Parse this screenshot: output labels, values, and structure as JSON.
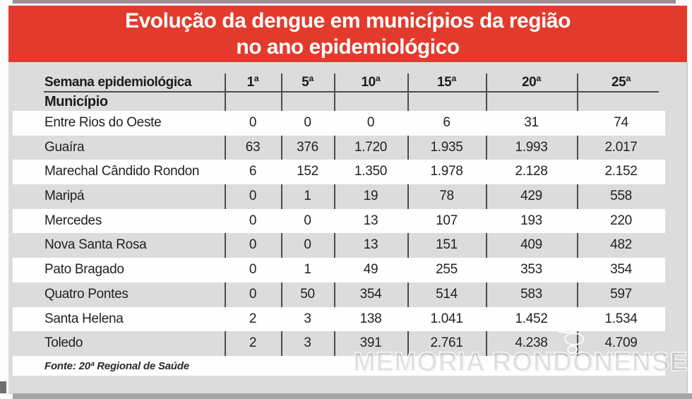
{
  "title": {
    "line1": "Evolução da dengue em municípios da região",
    "line2": "no ano epidemiológico"
  },
  "table": {
    "header_label": "Semana epidemiológica",
    "week_columns": [
      "1ª",
      "5ª",
      "10ª",
      "15ª",
      "20ª",
      "25ª"
    ],
    "subheader_label": "Município",
    "rows": [
      {
        "municipio": "Entre Rios do Oeste",
        "values": [
          "0",
          "0",
          "0",
          "6",
          "31",
          "74"
        ]
      },
      {
        "municipio": "Guaíra",
        "values": [
          "63",
          "376",
          "1.720",
          "1.935",
          "1.993",
          "2.017"
        ]
      },
      {
        "municipio": "Marechal Cândido Rondon",
        "values": [
          "6",
          "152",
          "1.350",
          "1.978",
          "2.128",
          "2.152"
        ]
      },
      {
        "municipio": "Maripá",
        "values": [
          "0",
          "1",
          "19",
          "78",
          "429",
          "558"
        ]
      },
      {
        "municipio": "Mercedes",
        "values": [
          "0",
          "0",
          "13",
          "107",
          "193",
          "220"
        ]
      },
      {
        "municipio": "Nova Santa Rosa",
        "values": [
          "0",
          "0",
          "13",
          "151",
          "409",
          "482"
        ]
      },
      {
        "municipio": "Pato Bragado",
        "values": [
          "0",
          "1",
          "49",
          "255",
          "353",
          "354"
        ]
      },
      {
        "municipio": "Quatro Pontes",
        "values": [
          "0",
          "50",
          "354",
          "514",
          "583",
          "597"
        ]
      },
      {
        "municipio": "Santa Helena",
        "values": [
          "2",
          "3",
          "138",
          "1.041",
          "1.452",
          "1.534"
        ]
      },
      {
        "municipio": "Toledo",
        "values": [
          "2",
          "3",
          "391",
          "2.761",
          "4.238",
          "4.709"
        ]
      }
    ],
    "source": "Fonte: 20ª Regional de Saúde"
  },
  "watermark": {
    "text": "MEMORIA RONDONENSE"
  },
  "colors": {
    "banner_red": "#e23b2d",
    "panel_gray": "#dcdcdc",
    "row_white": "#fefefe",
    "line_dark": "#4c4c4c"
  },
  "chart_data": {
    "type": "table",
    "title": "Evolução da dengue em municípios da região no ano epidemiológico",
    "columns": [
      "Semana epidemiológica / Município",
      "1ª",
      "5ª",
      "10ª",
      "15ª",
      "20ª",
      "25ª"
    ],
    "rows": [
      [
        "Entre Rios do Oeste",
        0,
        0,
        0,
        6,
        31,
        74
      ],
      [
        "Guaíra",
        63,
        376,
        1720,
        1935,
        1993,
        2017
      ],
      [
        "Marechal Cândido Rondon",
        6,
        152,
        1350,
        1978,
        2128,
        2152
      ],
      [
        "Maripá",
        0,
        1,
        19,
        78,
        429,
        558
      ],
      [
        "Mercedes",
        0,
        0,
        13,
        107,
        193,
        220
      ],
      [
        "Nova Santa Rosa",
        0,
        0,
        13,
        151,
        409,
        482
      ],
      [
        "Pato Bragado",
        0,
        1,
        49,
        255,
        353,
        354
      ],
      [
        "Quatro Pontes",
        0,
        50,
        354,
        514,
        583,
        597
      ],
      [
        "Santa Helena",
        2,
        3,
        138,
        1041,
        1452,
        1534
      ],
      [
        "Toledo",
        2,
        3,
        391,
        2761,
        4238,
        4709
      ]
    ],
    "source": "Fonte: 20ª Regional de Saúde",
    "number_format": "pt-BR (dot as thousands separator)"
  }
}
